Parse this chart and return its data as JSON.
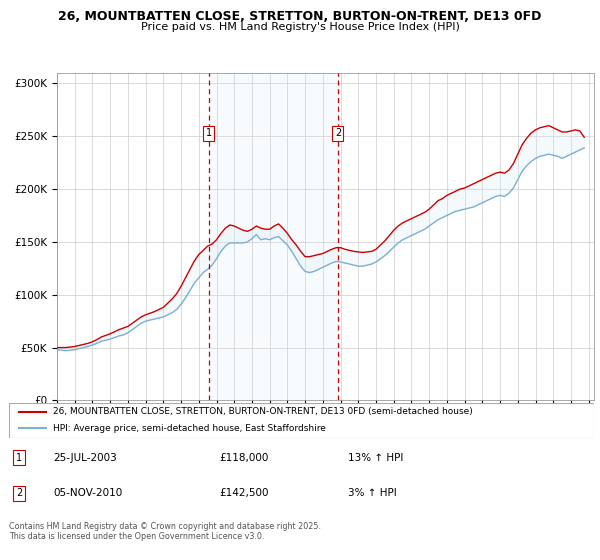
{
  "title1": "26, MOUNTBATTEN CLOSE, STRETTON, BURTON-ON-TRENT, DE13 0FD",
  "title2": "Price paid vs. HM Land Registry's House Price Index (HPI)",
  "ylim": [
    0,
    310000
  ],
  "yticks": [
    0,
    50000,
    100000,
    150000,
    200000,
    250000,
    300000
  ],
  "ytick_labels": [
    "£0",
    "£50K",
    "£100K",
    "£150K",
    "£200K",
    "£250K",
    "£300K"
  ],
  "red_line_color": "#cc0000",
  "blue_line_color": "#7bafd4",
  "shade_color": "#d6e8f5",
  "vline_color": "#cc0000",
  "vline_x": [
    2003.56,
    2010.85
  ],
  "vline_labels": [
    "1",
    "2"
  ],
  "transaction1_date": "25-JUL-2003",
  "transaction1_price": "£118,000",
  "transaction1_hpi": "13% ↑ HPI",
  "transaction2_date": "05-NOV-2010",
  "transaction2_price": "£142,500",
  "transaction2_hpi": "3% ↑ HPI",
  "legend_line1": "26, MOUNTBATTEN CLOSE, STRETTON, BURTON-ON-TRENT, DE13 0FD (semi-detached house)",
  "legend_line2": "HPI: Average price, semi-detached house, East Staffordshire",
  "footnote": "Contains HM Land Registry data © Crown copyright and database right 2025.\nThis data is licensed under the Open Government Licence v3.0.",
  "hpi_data_x": [
    1995.0,
    1995.25,
    1995.5,
    1995.75,
    1996.0,
    1996.25,
    1996.5,
    1996.75,
    1997.0,
    1997.25,
    1997.5,
    1997.75,
    1998.0,
    1998.25,
    1998.5,
    1998.75,
    1999.0,
    1999.25,
    1999.5,
    1999.75,
    2000.0,
    2000.25,
    2000.5,
    2000.75,
    2001.0,
    2001.25,
    2001.5,
    2001.75,
    2002.0,
    2002.25,
    2002.5,
    2002.75,
    2003.0,
    2003.25,
    2003.5,
    2003.75,
    2004.0,
    2004.25,
    2004.5,
    2004.75,
    2005.0,
    2005.25,
    2005.5,
    2005.75,
    2006.0,
    2006.25,
    2006.5,
    2006.75,
    2007.0,
    2007.25,
    2007.5,
    2007.75,
    2008.0,
    2008.25,
    2008.5,
    2008.75,
    2009.0,
    2009.25,
    2009.5,
    2009.75,
    2010.0,
    2010.25,
    2010.5,
    2010.75,
    2011.0,
    2011.25,
    2011.5,
    2011.75,
    2012.0,
    2012.25,
    2012.5,
    2012.75,
    2013.0,
    2013.25,
    2013.5,
    2013.75,
    2014.0,
    2014.25,
    2014.5,
    2014.75,
    2015.0,
    2015.25,
    2015.5,
    2015.75,
    2016.0,
    2016.25,
    2016.5,
    2016.75,
    2017.0,
    2017.25,
    2017.5,
    2017.75,
    2018.0,
    2018.25,
    2018.5,
    2018.75,
    2019.0,
    2019.25,
    2019.5,
    2019.75,
    2020.0,
    2020.25,
    2020.5,
    2020.75,
    2021.0,
    2021.25,
    2021.5,
    2021.75,
    2022.0,
    2022.25,
    2022.5,
    2022.75,
    2023.0,
    2023.25,
    2023.5,
    2023.75,
    2024.0,
    2024.25,
    2024.5,
    2024.75
  ],
  "hpi_data_y": [
    48000,
    47500,
    47000,
    47500,
    48000,
    49000,
    50000,
    51000,
    52500,
    54000,
    56000,
    57000,
    58000,
    59500,
    61000,
    62000,
    64000,
    67000,
    70000,
    73000,
    75000,
    76000,
    77000,
    78000,
    79000,
    81000,
    83000,
    86000,
    91000,
    97000,
    104000,
    111000,
    116000,
    121000,
    124000,
    128000,
    134000,
    141000,
    146000,
    149000,
    149000,
    149000,
    149000,
    150000,
    153000,
    157000,
    152000,
    153000,
    152000,
    154000,
    155000,
    151000,
    147000,
    141000,
    134000,
    127000,
    122000,
    121000,
    122000,
    124000,
    126000,
    128000,
    130000,
    131500,
    131000,
    130000,
    129000,
    128000,
    127000,
    127000,
    128000,
    129000,
    131000,
    134000,
    137000,
    141000,
    145000,
    149000,
    152000,
    154000,
    156000,
    158000,
    160000,
    162000,
    165000,
    168000,
    171000,
    173000,
    175000,
    177000,
    179000,
    180000,
    181000,
    182000,
    183000,
    185000,
    187000,
    189000,
    191000,
    193000,
    194000,
    193000,
    196000,
    201000,
    209000,
    217000,
    222000,
    226000,
    229000,
    231000,
    232000,
    233000,
    232000,
    231000,
    229000,
    231000,
    233000,
    235000,
    237000,
    239000
  ],
  "price_data_x": [
    1995.0,
    1995.25,
    1995.5,
    1995.75,
    1996.0,
    1996.25,
    1996.5,
    1996.75,
    1997.0,
    1997.25,
    1997.5,
    1997.75,
    1998.0,
    1998.25,
    1998.5,
    1998.75,
    1999.0,
    1999.25,
    1999.5,
    1999.75,
    2000.0,
    2000.25,
    2000.5,
    2000.75,
    2001.0,
    2001.25,
    2001.5,
    2001.75,
    2002.0,
    2002.25,
    2002.5,
    2002.75,
    2003.0,
    2003.25,
    2003.5,
    2003.75,
    2004.0,
    2004.25,
    2004.5,
    2004.75,
    2005.0,
    2005.25,
    2005.5,
    2005.75,
    2006.0,
    2006.25,
    2006.5,
    2006.75,
    2007.0,
    2007.25,
    2007.5,
    2007.75,
    2008.0,
    2008.25,
    2008.5,
    2008.75,
    2009.0,
    2009.25,
    2009.5,
    2009.75,
    2010.0,
    2010.25,
    2010.5,
    2010.75,
    2011.0,
    2011.25,
    2011.5,
    2011.75,
    2012.0,
    2012.25,
    2012.5,
    2012.75,
    2013.0,
    2013.25,
    2013.5,
    2013.75,
    2014.0,
    2014.25,
    2014.5,
    2014.75,
    2015.0,
    2015.25,
    2015.5,
    2015.75,
    2016.0,
    2016.25,
    2016.5,
    2016.75,
    2017.0,
    2017.25,
    2017.5,
    2017.75,
    2018.0,
    2018.25,
    2018.5,
    2018.75,
    2019.0,
    2019.25,
    2019.5,
    2019.75,
    2020.0,
    2020.25,
    2020.5,
    2020.75,
    2021.0,
    2021.25,
    2021.5,
    2021.75,
    2022.0,
    2022.25,
    2022.5,
    2022.75,
    2023.0,
    2023.25,
    2023.5,
    2023.75,
    2024.0,
    2024.25,
    2024.5,
    2024.75
  ],
  "price_data_y": [
    50000,
    50000,
    50000,
    50500,
    51000,
    52000,
    53000,
    54000,
    55500,
    57500,
    60000,
    61500,
    63000,
    65000,
    67000,
    68500,
    70000,
    73000,
    76000,
    79000,
    81000,
    82500,
    84000,
    86000,
    88000,
    92000,
    96000,
    101000,
    108000,
    116000,
    124000,
    132000,
    138000,
    142000,
    146000,
    148000,
    152000,
    158000,
    163000,
    166000,
    165000,
    163000,
    161000,
    160000,
    162000,
    165000,
    163000,
    162000,
    162000,
    165000,
    167000,
    163000,
    158000,
    152000,
    147000,
    141000,
    136000,
    136000,
    137000,
    138000,
    139000,
    141000,
    143000,
    144500,
    144500,
    143000,
    142000,
    141000,
    140500,
    140000,
    140500,
    141000,
    143000,
    147000,
    151000,
    156000,
    161000,
    165000,
    168000,
    170000,
    172000,
    174000,
    176000,
    178000,
    181000,
    185000,
    189000,
    191000,
    194000,
    196000,
    198000,
    200000,
    201000,
    203000,
    205000,
    207000,
    209000,
    211000,
    213000,
    215000,
    216000,
    215000,
    218000,
    224000,
    233000,
    242000,
    248000,
    253000,
    256000,
    258000,
    259000,
    260000,
    258000,
    256000,
    254000,
    254000,
    255000,
    256000,
    255000,
    249000
  ]
}
